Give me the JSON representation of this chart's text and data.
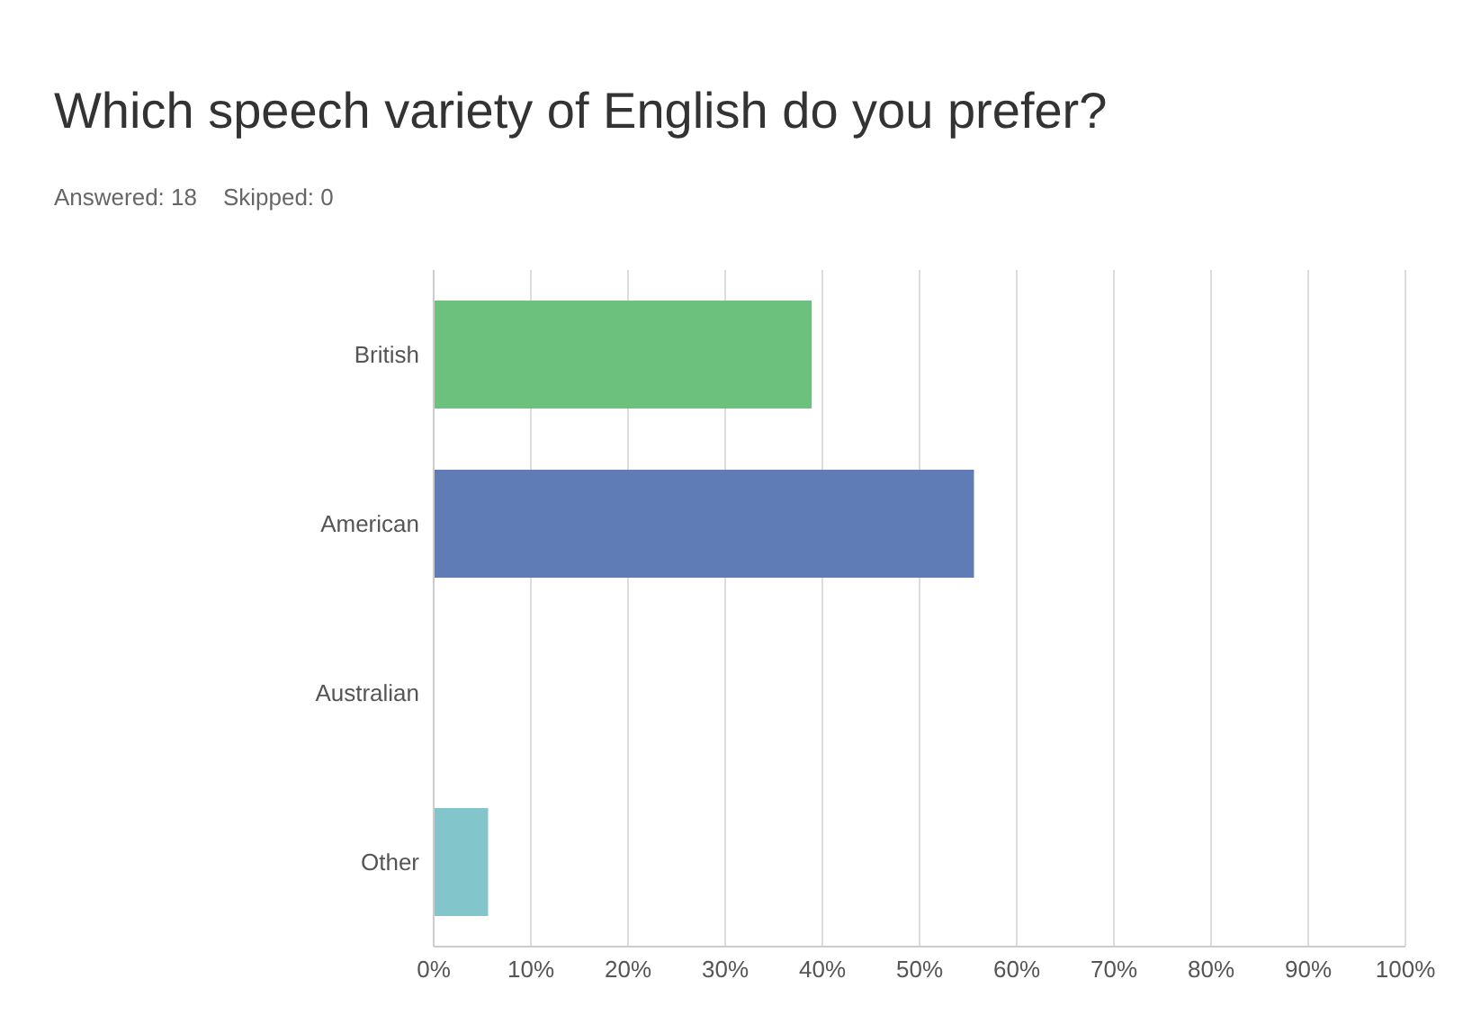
{
  "chart_data": {
    "type": "bar",
    "orientation": "horizontal",
    "title": "Which speech variety of English do you prefer?",
    "subtitle": "Answered: 18    Skipped: 0",
    "categories": [
      "British",
      "American",
      "Australian",
      "Other"
    ],
    "values": [
      38.9,
      55.6,
      0,
      5.6
    ],
    "colors": [
      "#6cc17c",
      "#5f7cb6",
      "#6cc17c",
      "#82c6cb"
    ],
    "xlim": [
      0,
      100
    ],
    "xticks": [
      {
        "value": 0,
        "label": "0%"
      },
      {
        "value": 10,
        "label": "10%"
      },
      {
        "value": 20,
        "label": "20%"
      },
      {
        "value": 30,
        "label": "30%"
      },
      {
        "value": 40,
        "label": "40%"
      },
      {
        "value": 50,
        "label": "50%"
      },
      {
        "value": 60,
        "label": "60%"
      },
      {
        "value": 70,
        "label": "70%"
      },
      {
        "value": 80,
        "label": "80%"
      },
      {
        "value": 90,
        "label": "90%"
      },
      {
        "value": 100,
        "label": "100%"
      }
    ],
    "grid": "x"
  }
}
